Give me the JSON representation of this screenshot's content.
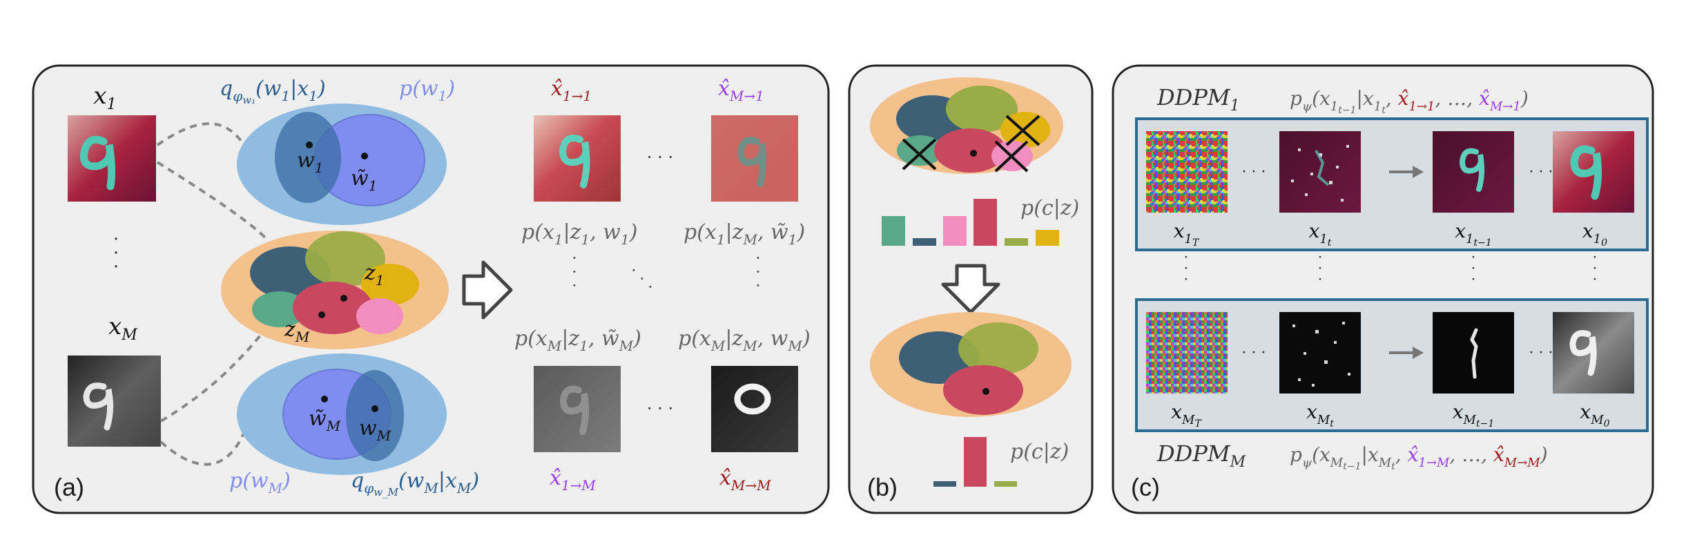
{
  "panels": {
    "a": {
      "label": "(a)",
      "x1": "x₁",
      "xM": "xₘ",
      "dots_left": "·\n·\n·",
      "q_w1": "qφw₁(w₁|x₁)",
      "p_w1": "p(w₁)",
      "w1": "w₁",
      "w1_tilde": "w̃₁",
      "z1": "z₁",
      "zM": "zₘ",
      "wM": "wₘ",
      "wM_tilde": "w̃ₘ",
      "p_wM": "p(wₘ)",
      "q_wM": "qφwₘ(wₘ|xₘ)",
      "xhat_1_1": "x̂1→1",
      "xhat_M_1": "x̂M→1",
      "xhat_1_M": "x̂1→M",
      "xhat_M_M": "x̂M→M",
      "p_x1_z1_w1": "p(x₁|z₁, w₁)",
      "p_x1_zM_w1t": "p(x₁|zₘ, w̃₁)",
      "p_xM_z1_wMt": "p(xₘ|z₁, w̃ₘ)",
      "p_xM_zM_wM": "p(xₘ|zₘ, wₘ)",
      "hdots": "· · ·"
    },
    "b": {
      "label": "(b)",
      "p_cz_top": "p(c|z)",
      "p_cz_bottom": "p(c|z)"
    },
    "c": {
      "label": "(c)",
      "ddpm1": "DDPM₁",
      "ddpmM": "DDPMₘ",
      "cond1_pre": "pψ(x1t−1|x1t, ",
      "cond1_a": "x̂1→1",
      "cond1_mid": ", …, ",
      "cond1_b": "x̂M→1",
      "cond1_post": ")",
      "condM_pre": "pψ(xMt−1|xMt, ",
      "condM_a": "x̂1→M",
      "condM_mid": ", …, ",
      "condM_b": "x̂M→M",
      "condM_post": ")",
      "row1": [
        "x1T",
        "x1t",
        "x1t−1",
        "x10"
      ],
      "rowM": [
        "xMT",
        "xMt",
        "xMt−1",
        "xM0"
      ]
    }
  },
  "colors": {
    "panel_bg": "#efefef",
    "blue_ellipse": "#8fbce0",
    "orange_ellipse": "#f4c08c",
    "dark_blue": "#3e6fa8",
    "light_purple": "#7f8cf0",
    "dark_red": "#a01c1c",
    "purple": "#9b3cf0",
    "blob_teal": "#3e6077",
    "blob_olive": "#9aac47",
    "blob_yellow": "#e1b312",
    "blob_red": "#c9485f",
    "blob_pink": "#f28dbf",
    "blob_green": "#5aa88a",
    "frame_blue": "#2a6b8f"
  },
  "chart_data": [
    {
      "type": "bar",
      "title": "p(c|z)",
      "categories": [
        "teal",
        "dark-blue",
        "pink",
        "red",
        "olive",
        "yellow"
      ],
      "values": [
        0.55,
        0.15,
        0.55,
        0.9,
        0.15,
        0.3
      ]
    },
    {
      "type": "bar",
      "title": "p(c|z)",
      "categories": [
        "dark-blue",
        "red",
        "olive"
      ],
      "values": [
        0.1,
        1.0,
        0.1
      ]
    }
  ]
}
